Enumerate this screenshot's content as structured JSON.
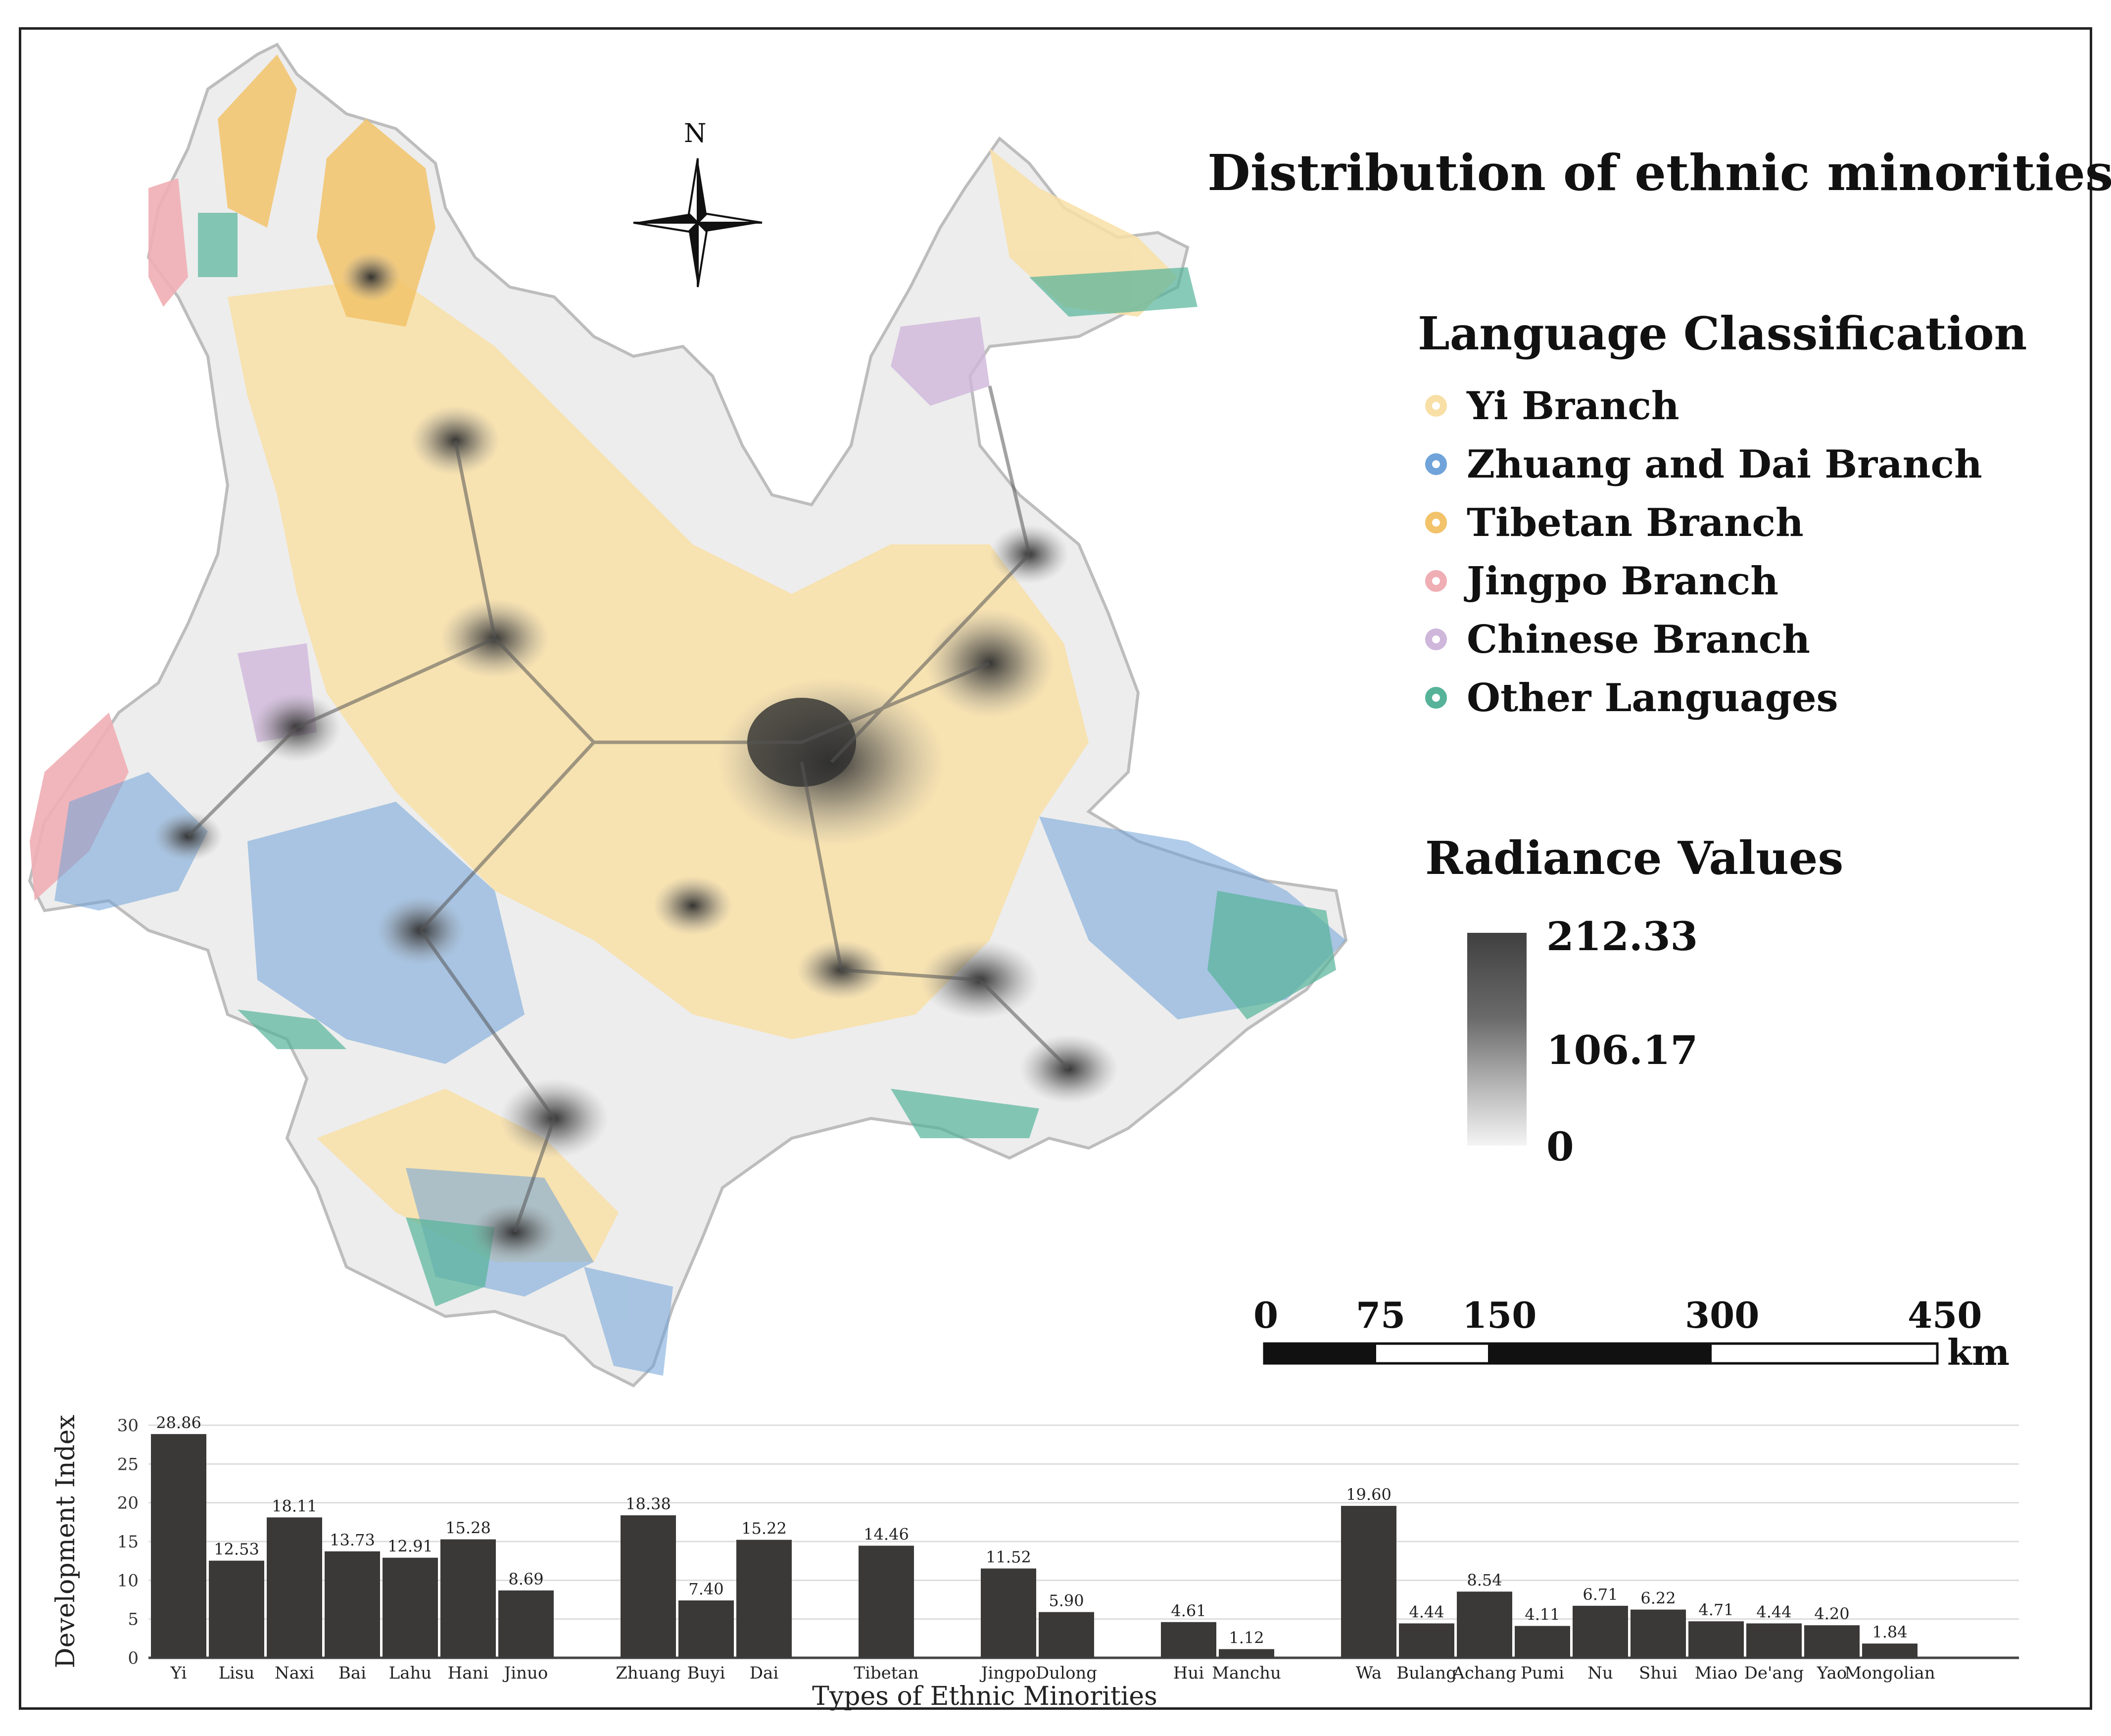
{
  "title": "Distribution of ethnic minorities",
  "north_arrow": {
    "label": "N"
  },
  "language_legend": {
    "title": "Language Classification",
    "items": [
      {
        "label": "Yi Branch",
        "color": "#f8dfa6"
      },
      {
        "label": "Zhuang and Dai Branch",
        "color": "#6fa3d9"
      },
      {
        "label": "Tibetan Branch",
        "color": "#f2c36a"
      },
      {
        "label": "Jingpo Branch",
        "color": "#efaeb4"
      },
      {
        "label": "Chinese Branch",
        "color": "#cfb6db"
      },
      {
        "label": "Other Languages",
        "color": "#56b39a"
      }
    ]
  },
  "radiance_legend": {
    "title": "Radiance Values",
    "max": "212.33",
    "mid": "106.17",
    "min": "0"
  },
  "scale_bar": {
    "labels": [
      "0",
      "75",
      "150",
      "300",
      "450"
    ],
    "unit": "km"
  },
  "chart_data": {
    "type": "bar",
    "title": "",
    "xlabel": "Types of Ethnic Minorities",
    "ylabel": "Development Index",
    "ylim": [
      0,
      30
    ],
    "yticks": [
      0,
      5,
      10,
      15,
      20,
      25,
      30
    ],
    "grid": true,
    "bar_color": "#3b3838",
    "groups": [
      {
        "categories": [
          "Yi",
          "Lisu",
          "Naxi",
          "Bai",
          "Lahu",
          "Hani",
          "Jinuo"
        ],
        "values": [
          28.86,
          12.53,
          18.11,
          13.73,
          12.91,
          15.28,
          8.69
        ],
        "labels": [
          "28.86",
          "12.53",
          "18.11",
          "13.73",
          "12.91",
          "15.28",
          "8.69"
        ]
      },
      {
        "categories": [
          "Zhuang",
          "Buyi",
          "Dai"
        ],
        "values": [
          18.38,
          7.4,
          15.22
        ],
        "labels": [
          "18.38",
          "7.40",
          "15.22"
        ]
      },
      {
        "categories": [
          "Tibetan"
        ],
        "values": [
          14.46
        ],
        "labels": [
          "14.46"
        ]
      },
      {
        "categories": [
          "Jingpo",
          "Dulong"
        ],
        "values": [
          11.52,
          5.9
        ],
        "labels": [
          "11.52",
          "5.90"
        ]
      },
      {
        "categories": [
          "Hui",
          "Manchu"
        ],
        "values": [
          4.61,
          1.12
        ],
        "labels": [
          "4.61",
          "1.12"
        ]
      },
      {
        "categories": [
          "Wa",
          "Bulang",
          "Achang",
          "Pumi",
          "Nu",
          "Shui",
          "Miao",
          "De'ang",
          "Yao",
          "Mongolian"
        ],
        "values": [
          19.6,
          4.44,
          8.54,
          4.11,
          6.71,
          6.22,
          4.71,
          4.44,
          4.2,
          1.84
        ],
        "labels": [
          "19.60",
          "4.44",
          "8.54",
          "4.11",
          "6.71",
          "6.22",
          "4.71",
          "4.44",
          "4.20",
          "1.84"
        ]
      }
    ]
  }
}
